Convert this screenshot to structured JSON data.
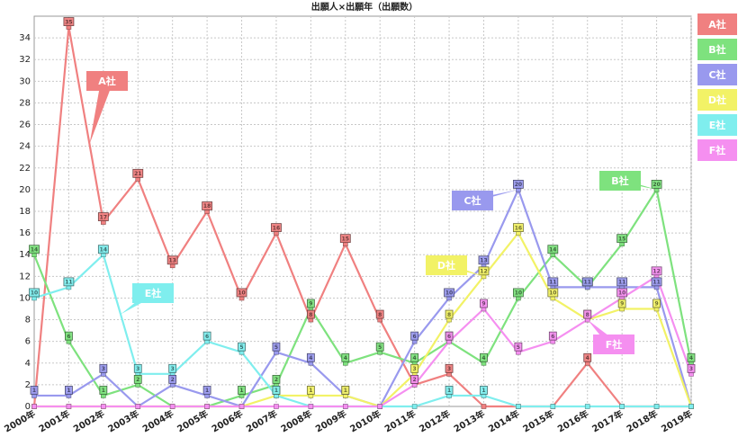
{
  "chart_data": {
    "type": "line",
    "title": "出願人×出願年（出願数）",
    "xlabel": "",
    "ylabel": "",
    "categories": [
      "2000年",
      "2001年",
      "2002年",
      "2003年",
      "2004年",
      "2005年",
      "2006年",
      "2007年",
      "2008年",
      "2009年",
      "2010年",
      "2011年",
      "2012年",
      "2013年",
      "2014年",
      "2015年",
      "2016年",
      "2017年",
      "2018年",
      "2019年"
    ],
    "ylim": [
      0,
      36
    ],
    "yticks": [
      0,
      2,
      4,
      6,
      8,
      10,
      12,
      14,
      16,
      18,
      20,
      22,
      24,
      26,
      28,
      30,
      32,
      34
    ],
    "grid": true,
    "legend_position": "right",
    "series": [
      {
        "name": "A社",
        "color": "#f08080",
        "values": [
          0,
          35,
          17,
          21,
          13,
          18,
          10,
          16,
          8,
          15,
          8,
          2,
          3,
          0,
          0,
          0,
          4,
          0,
          0,
          0
        ]
      },
      {
        "name": "B社",
        "color": "#7ee27e",
        "values": [
          14,
          6,
          1,
          2,
          0,
          0,
          1,
          2,
          9,
          4,
          5,
          4,
          6,
          4,
          10,
          14,
          11,
          15,
          20,
          4
        ]
      },
      {
        "name": "C社",
        "color": "#9999ee",
        "values": [
          1,
          1,
          3,
          0,
          2,
          1,
          0,
          5,
          4,
          1,
          0,
          6,
          10,
          13,
          20,
          11,
          11,
          11,
          11,
          0
        ]
      },
      {
        "name": "D社",
        "color": "#f2f266",
        "values": [
          0,
          0,
          0,
          0,
          0,
          0,
          0,
          1,
          1,
          1,
          0,
          3,
          8,
          12,
          16,
          10,
          8,
          9,
          9,
          0
        ]
      },
      {
        "name": "E社",
        "color": "#7feeee",
        "values": [
          10,
          11,
          14,
          3,
          3,
          6,
          5,
          1,
          0,
          0,
          0,
          0,
          1,
          1,
          0,
          0,
          0,
          0,
          0,
          0
        ]
      },
      {
        "name": "F社",
        "color": "#f58ff0",
        "values": [
          0,
          0,
          0,
          0,
          0,
          0,
          0,
          0,
          0,
          0,
          0,
          2,
          6,
          9,
          5,
          6,
          8,
          10,
          12,
          3
        ]
      }
    ],
    "callouts": [
      "A社",
      "B社",
      "C社",
      "D社",
      "E社",
      "F社"
    ]
  }
}
